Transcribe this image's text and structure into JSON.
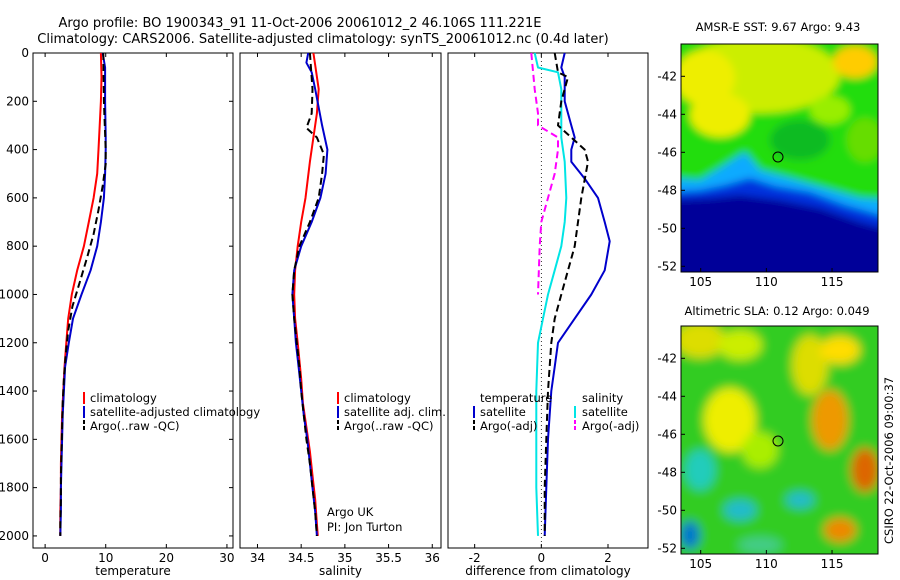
{
  "header": {
    "line1": "Argo profile: BO 1900343_91 11-Oct-2006 20061012_2 46.106S 111.221E",
    "line2": "Climatology: CARS2006. Satellite-adjusted climatology: synTS_20061012.nc (0.4d later)"
  },
  "notes": {
    "argo_uk": "Argo UK",
    "pi": "PI: Jon Turton",
    "csiro": "CSIRO 22-Oct-2006 09:00:37"
  },
  "colors": {
    "climatology": "#ff0000",
    "satellite": "#0000cc",
    "argo": "#000000",
    "cyan": "#00e5e5",
    "magenta": "#ff00ff"
  },
  "chart_data": [
    {
      "id": "temperature",
      "type": "line",
      "xlabel": "temperature",
      "ylabel": "",
      "xlim": [
        -2,
        31
      ],
      "ylim": [
        2050,
        0
      ],
      "xticks": [
        0,
        10,
        20,
        30
      ],
      "yticks": [
        0,
        200,
        400,
        600,
        800,
        1000,
        1200,
        1400,
        1600,
        1800,
        2000
      ],
      "legend": [
        "climatology",
        "satellite-adjusted climatology",
        "Argo(..raw -QC)"
      ],
      "series": [
        {
          "name": "climatology",
          "color": "#ff0000",
          "style": "solid",
          "width": 2,
          "points": [
            [
              9.2,
              0
            ],
            [
              9.3,
              100
            ],
            [
              9.2,
              200
            ],
            [
              9.0,
              300
            ],
            [
              8.8,
              400
            ],
            [
              8.6,
              500
            ],
            [
              8.0,
              600
            ],
            [
              7.2,
              700
            ],
            [
              6.4,
              800
            ],
            [
              5.3,
              900
            ],
            [
              4.4,
              1000
            ],
            [
              3.8,
              1100
            ],
            [
              3.5,
              1200
            ],
            [
              3.2,
              1300
            ],
            [
              3.0,
              1400
            ],
            [
              2.8,
              1500
            ],
            [
              2.7,
              1600
            ],
            [
              2.6,
              1700
            ],
            [
              2.6,
              1800
            ],
            [
              2.5,
              1900
            ],
            [
              2.5,
              2000
            ]
          ]
        },
        {
          "name": "satellite-adjusted climatology",
          "color": "#0000cc",
          "style": "solid",
          "width": 2,
          "points": [
            [
              9.5,
              0
            ],
            [
              9.9,
              60
            ],
            [
              9.9,
              200
            ],
            [
              10.0,
              350
            ],
            [
              10.0,
              400
            ],
            [
              9.9,
              500
            ],
            [
              9.7,
              600
            ],
            [
              9.2,
              700
            ],
            [
              8.6,
              800
            ],
            [
              7.5,
              900
            ],
            [
              6.0,
              1000
            ],
            [
              4.6,
              1100
            ],
            [
              3.9,
              1200
            ],
            [
              3.3,
              1300
            ],
            [
              3.1,
              1400
            ],
            [
              2.9,
              1500
            ],
            [
              2.8,
              1600
            ],
            [
              2.7,
              1700
            ],
            [
              2.6,
              1800
            ],
            [
              2.6,
              1900
            ],
            [
              2.5,
              2000
            ]
          ]
        },
        {
          "name": "Argo(..raw -QC)",
          "color": "#000000",
          "style": "dashed",
          "width": 2,
          "points": [
            [
              9.6,
              0
            ],
            [
              9.7,
              200
            ],
            [
              10.0,
              400
            ],
            [
              10.0,
              460
            ],
            [
              9.5,
              550
            ],
            [
              8.8,
              650
            ],
            [
              8.0,
              750
            ],
            [
              6.9,
              850
            ],
            [
              5.7,
              950
            ],
            [
              4.5,
              1050
            ],
            [
              3.8,
              1150
            ],
            [
              3.4,
              1250
            ],
            [
              3.1,
              1350
            ],
            [
              2.9,
              1450
            ],
            [
              2.8,
              1550
            ],
            [
              2.7,
              1650
            ],
            [
              2.6,
              1750
            ],
            [
              2.6,
              1850
            ],
            [
              2.5,
              1950
            ],
            [
              2.5,
              2000
            ]
          ]
        }
      ]
    },
    {
      "id": "salinity",
      "type": "line",
      "xlabel": "salinity",
      "ylabel": "",
      "xlim": [
        33.8,
        36.1
      ],
      "ylim": [
        2050,
        0
      ],
      "xticks": [
        34,
        34.5,
        35,
        35.5,
        36
      ],
      "yticks": [],
      "legend": [
        "climatology",
        "satellite adj. clim.",
        "Argo(..raw -QC)"
      ],
      "series": [
        {
          "name": "climatology",
          "color": "#ff0000",
          "style": "solid",
          "width": 2,
          "points": [
            [
              34.64,
              0
            ],
            [
              34.66,
              50
            ],
            [
              34.7,
              150
            ],
            [
              34.68,
              250
            ],
            [
              34.64,
              350
            ],
            [
              34.6,
              450
            ],
            [
              34.55,
              600
            ],
            [
              34.5,
              700
            ],
            [
              34.46,
              800
            ],
            [
              34.43,
              900
            ],
            [
              34.42,
              1000
            ],
            [
              34.43,
              1100
            ],
            [
              34.46,
              1200
            ],
            [
              34.5,
              1350
            ],
            [
              34.52,
              1450
            ],
            [
              34.56,
              1550
            ],
            [
              34.6,
              1650
            ],
            [
              34.63,
              1750
            ],
            [
              34.66,
              1850
            ],
            [
              34.68,
              1950
            ],
            [
              34.69,
              2000
            ]
          ]
        },
        {
          "name": "satellite adj. clim.",
          "color": "#0000cc",
          "style": "solid",
          "width": 2,
          "points": [
            [
              34.58,
              0
            ],
            [
              34.56,
              40
            ],
            [
              34.62,
              80
            ],
            [
              34.66,
              150
            ],
            [
              34.74,
              300
            ],
            [
              34.8,
              400
            ],
            [
              34.78,
              500
            ],
            [
              34.72,
              600
            ],
            [
              34.62,
              700
            ],
            [
              34.5,
              800
            ],
            [
              34.42,
              900
            ],
            [
              34.4,
              1000
            ],
            [
              34.42,
              1100
            ],
            [
              34.44,
              1200
            ],
            [
              34.47,
              1300
            ],
            [
              34.5,
              1400
            ],
            [
              34.53,
              1500
            ],
            [
              34.57,
              1600
            ],
            [
              34.6,
              1700
            ],
            [
              34.63,
              1800
            ],
            [
              34.66,
              1900
            ],
            [
              34.68,
              2000
            ]
          ]
        },
        {
          "name": "Argo(..raw -QC)",
          "color": "#000000",
          "style": "dashed",
          "width": 2,
          "points": [
            [
              34.6,
              0
            ],
            [
              34.63,
              150
            ],
            [
              34.62,
              250
            ],
            [
              34.56,
              310
            ],
            [
              34.68,
              350
            ],
            [
              34.76,
              420
            ],
            [
              34.74,
              500
            ],
            [
              34.7,
              600
            ],
            [
              34.6,
              700
            ],
            [
              34.48,
              800
            ],
            [
              34.42,
              900
            ],
            [
              34.4,
              1000
            ],
            [
              34.42,
              1100
            ],
            [
              34.45,
              1200
            ],
            [
              34.48,
              1300
            ],
            [
              34.5,
              1400
            ],
            [
              34.53,
              1500
            ],
            [
              34.56,
              1600
            ],
            [
              34.6,
              1700
            ],
            [
              34.63,
              1800
            ],
            [
              34.66,
              1900
            ],
            [
              34.68,
              2000
            ]
          ]
        }
      ]
    },
    {
      "id": "difference",
      "type": "line",
      "xlabel": "difference from climatology",
      "ylabel": "",
      "xlim": [
        -2.8,
        3.2
      ],
      "ylim": [
        2050,
        0
      ],
      "xticks": [
        -2,
        0,
        2
      ],
      "yticks": [],
      "legend_temperature_title": "temperature",
      "legend_salinity_title": "salinity",
      "legend": [
        "satellite",
        "Argo(-adj)",
        "satellite",
        "Argo(-adj)"
      ],
      "series": [
        {
          "name": "satellite",
          "group": "temperature",
          "color": "#0000cc",
          "style": "solid",
          "width": 2,
          "points": [
            [
              0.7,
              0
            ],
            [
              0.6,
              60
            ],
            [
              0.7,
              100
            ],
            [
              0.7,
              200
            ],
            [
              0.9,
              300
            ],
            [
              1.0,
              350
            ],
            [
              0.9,
              400
            ],
            [
              0.9,
              450
            ],
            [
              1.3,
              520
            ],
            [
              1.7,
              600
            ],
            [
              1.9,
              700
            ],
            [
              2.05,
              780
            ],
            [
              1.9,
              900
            ],
            [
              1.5,
              1000
            ],
            [
              1.0,
              1100
            ],
            [
              0.5,
              1200
            ],
            [
              0.4,
              1300
            ],
            [
              0.3,
              1400
            ],
            [
              0.2,
              1600
            ],
            [
              0.15,
              1800
            ],
            [
              0.1,
              2000
            ]
          ]
        },
        {
          "name": "satellite",
          "group": "salinity",
          "color": "#00e5e5",
          "style": "solid",
          "width": 2,
          "points": [
            [
              -0.2,
              0
            ],
            [
              -0.1,
              60
            ],
            [
              0.5,
              80
            ],
            [
              0.6,
              150
            ],
            [
              0.6,
              250
            ],
            [
              0.6,
              350
            ],
            [
              0.7,
              450
            ],
            [
              0.75,
              600
            ],
            [
              0.7,
              700
            ],
            [
              0.6,
              800
            ],
            [
              0.4,
              900
            ],
            [
              0.2,
              1000
            ],
            [
              0.05,
              1100
            ],
            [
              -0.1,
              1200
            ],
            [
              -0.15,
              1400
            ],
            [
              -0.15,
              1600
            ],
            [
              -0.15,
              1800
            ],
            [
              -0.1,
              2000
            ]
          ]
        },
        {
          "name": "Argo(-adj)",
          "group": "temperature",
          "color": "#000000",
          "style": "dashed",
          "width": 2,
          "points": [
            [
              0.4,
              0
            ],
            [
              0.5,
              80
            ],
            [
              0.8,
              100
            ],
            [
              0.6,
              200
            ],
            [
              0.5,
              300
            ],
            [
              0.9,
              350
            ],
            [
              1.3,
              400
            ],
            [
              1.4,
              450
            ],
            [
              1.2,
              600
            ],
            [
              1.1,
              700
            ],
            [
              1.0,
              800
            ],
            [
              0.8,
              900
            ],
            [
              0.6,
              1000
            ],
            [
              0.4,
              1100
            ],
            [
              0.3,
              1200
            ],
            [
              0.2,
              1400
            ],
            [
              0.15,
              1600
            ],
            [
              0.1,
              1800
            ],
            [
              0.1,
              2000
            ]
          ]
        },
        {
          "name": "Argo(-adj)",
          "group": "salinity",
          "color": "#ff00ff",
          "style": "dashed",
          "width": 2,
          "points": [
            [
              -0.3,
              0
            ],
            [
              -0.2,
              150
            ],
            [
              -0.1,
              250
            ],
            [
              -0.1,
              300
            ],
            [
              0.5,
              350
            ],
            [
              0.5,
              400
            ],
            [
              0.4,
              500
            ],
            [
              0.2,
              600
            ],
            [
              0.0,
              700
            ],
            [
              -0.05,
              800
            ],
            [
              -0.1,
              1000
            ]
          ]
        }
      ]
    },
    {
      "id": "sst_map",
      "type": "heatmap",
      "title": "AMSR-E SST: 9.67 Argo: 9.43",
      "xlim": [
        103.5,
        118.5
      ],
      "ylim": [
        -52.3,
        -40.3
      ],
      "xticks": [
        105,
        110,
        115
      ],
      "yticks": [
        -42,
        -44,
        -46,
        -48,
        -50,
        -52
      ],
      "argo_marker": {
        "lon": 111.221,
        "lat": -46.106
      }
    },
    {
      "id": "sla_map",
      "type": "heatmap",
      "title": "Altimetric SLA: 0.12 Argo: 0.049",
      "xlim": [
        103.5,
        118.5
      ],
      "ylim": [
        -52.3,
        -40.3
      ],
      "xticks": [
        105,
        110,
        115
      ],
      "yticks": [
        -42,
        -44,
        -46,
        -48,
        -50,
        -52
      ],
      "argo_marker": {
        "lon": 111.221,
        "lat": -46.106
      }
    }
  ]
}
